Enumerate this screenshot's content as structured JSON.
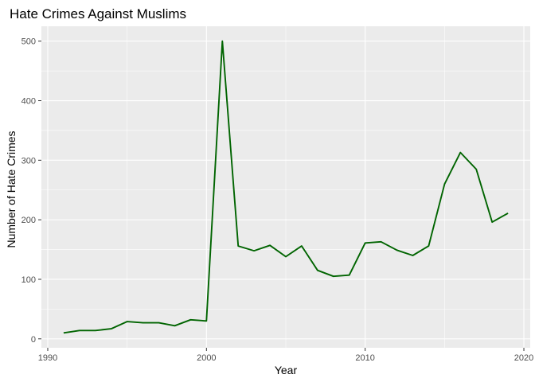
{
  "chart_data": {
    "type": "line",
    "title": "Hate Crimes Against Muslims",
    "xlabel": "Year",
    "ylabel": "Number of Hate Crimes",
    "xlim": [
      1989.6,
      2020.4
    ],
    "ylim": [
      -15,
      525
    ],
    "x_ticks": [
      1990,
      2000,
      2010,
      2020
    ],
    "y_ticks": [
      0,
      100,
      200,
      300,
      400,
      500
    ],
    "grid": true,
    "legend": "none",
    "colors": {
      "line": "#006400",
      "panel": "#ebebeb",
      "grid": "#ffffff"
    },
    "series": [
      {
        "x": [
          1991,
          1992,
          1993,
          1994,
          1995,
          1996,
          1997,
          1998,
          1999,
          2000,
          2001,
          2002,
          2003,
          2004,
          2005,
          2006,
          2007,
          2008,
          2009,
          2010,
          2011,
          2012,
          2013,
          2014,
          2015,
          2016,
          2017,
          2018,
          2019
        ],
        "values": [
          10,
          14,
          14,
          17,
          29,
          27,
          27,
          22,
          32,
          30,
          500,
          156,
          148,
          157,
          138,
          156,
          115,
          105,
          107,
          161,
          163,
          149,
          140,
          156,
          260,
          313,
          285,
          196,
          211
        ]
      }
    ]
  }
}
